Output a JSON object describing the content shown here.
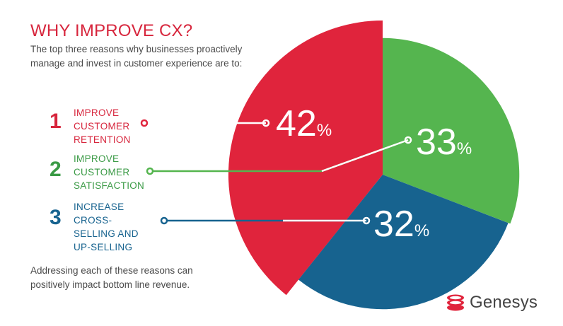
{
  "title": "WHY IMPROVE CX?",
  "intro": "The top three reasons why businesses proactively manage and invest in customer experience are to:",
  "reasons": [
    {
      "number": "1",
      "label": "IMPROVE CUSTOMER RETENTION"
    },
    {
      "number": "2",
      "label": "IMPROVE CUSTOMER SATISFACTION"
    },
    {
      "number": "3",
      "label": "INCREASE CROSS-SELLING AND UP-SELLING"
    }
  ],
  "footer": "Addressing each of these reasons can positively impact bottom line revenue.",
  "logo_text": "Genesys",
  "colors": {
    "red": "#e0243c",
    "green": "#55b54f",
    "blue": "#17638f",
    "title": "#d7263d",
    "text": "#4a4a4a"
  },
  "chart_data": {
    "type": "pie",
    "series": [
      {
        "name": "IMPROVE CUSTOMER RETENTION",
        "value": 42,
        "label": "42",
        "unit": "%",
        "color": "#e0243c"
      },
      {
        "name": "IMPROVE CUSTOMER SATISFACTION",
        "value": 33,
        "label": "33",
        "unit": "%",
        "color": "#55b54f"
      },
      {
        "name": "INCREASE CROSS-SELLING AND UP-SELLING",
        "value": 32,
        "label": "32",
        "unit": "%",
        "color": "#17638f"
      }
    ]
  }
}
